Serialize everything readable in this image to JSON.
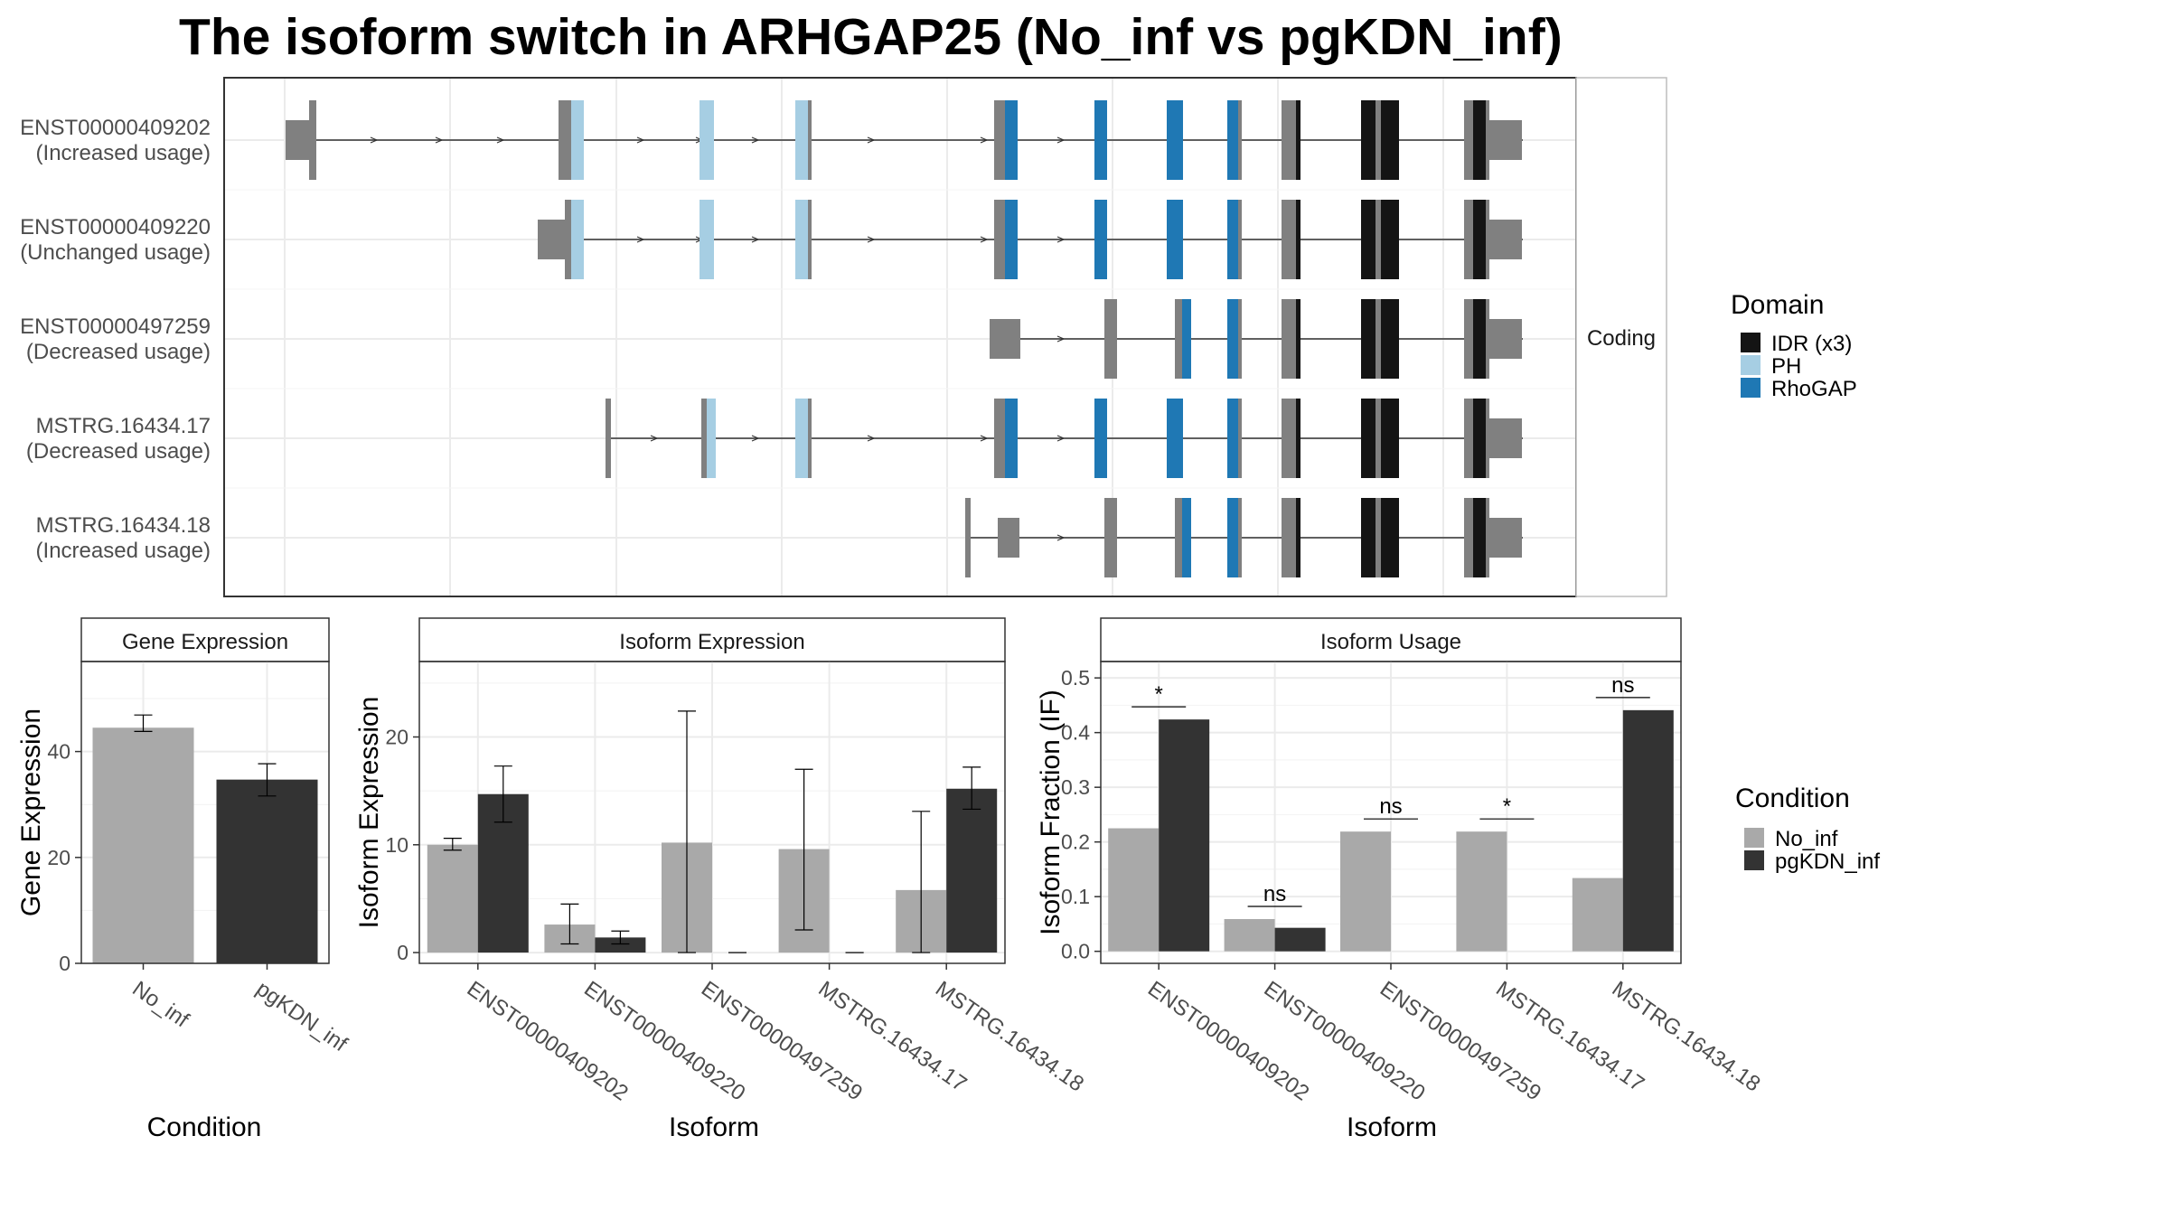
{
  "title": "The isoform switch in ARHGAP25 (No_inf vs pgKDN_inf)",
  "structure_panel": {
    "strip_label": "Coding",
    "isoforms": [
      {
        "id": "ENST00000409202",
        "usage": "(Increased usage)"
      },
      {
        "id": "ENST00000409220",
        "usage": "(Unchanged usage)"
      },
      {
        "id": "ENST00000497259",
        "usage": "(Decreased usage)"
      },
      {
        "id": "MSTRG.16434.17",
        "usage": "(Decreased usage)"
      },
      {
        "id": "MSTRG.16434.18",
        "usage": "(Increased usage)"
      }
    ]
  },
  "domain_legend": {
    "title": "Domain",
    "items": [
      {
        "label": "IDR (x3)",
        "color": "#141414"
      },
      {
        "label": "PH",
        "color": "#a6cee3"
      },
      {
        "label": "RhoGAP",
        "color": "#1f78b4"
      }
    ]
  },
  "condition_legend": {
    "title": "Condition",
    "items": [
      {
        "label": "No_inf",
        "color": "#a9a9a9"
      },
      {
        "label": "pgKDN_inf",
        "color": "#333333"
      }
    ]
  },
  "colors": {
    "utr": "#808080",
    "idr": "#141414",
    "ph": "#a6cee3",
    "rhogap": "#1f78b4",
    "no_inf": "#a9a9a9",
    "pgkdn_inf": "#333333"
  },
  "chart_data": [
    {
      "type": "bar",
      "title": "Gene Expression",
      "xlabel": "Condition",
      "ylabel": "Gene Expression",
      "ylim": [
        0,
        57
      ],
      "yticks": [
        0,
        20,
        40
      ],
      "categories": [
        "No_inf",
        "pgKDN_inf"
      ],
      "values": [
        44.5,
        34.7
      ],
      "errors": [
        [
          43.8,
          46.9
        ],
        [
          31.6,
          37.7
        ]
      ]
    },
    {
      "type": "bar",
      "title": "Isoform Expression",
      "xlabel": "Isoform",
      "ylabel": "Isoform Expression",
      "ylim": [
        -1,
        27
      ],
      "yticks": [
        0,
        10,
        20
      ],
      "categories": [
        "ENST00000409202",
        "ENST00000409220",
        "ENST00000497259",
        "MSTRG.16434.17",
        "MSTRG.16434.18"
      ],
      "series": [
        {
          "name": "No_inf",
          "values": [
            10.0,
            2.6,
            10.2,
            9.6,
            5.8
          ],
          "errors": [
            [
              9.5,
              10.6
            ],
            [
              0.8,
              4.5
            ],
            [
              0.0,
              22.4
            ],
            [
              2.1,
              17.0
            ],
            [
              0.0,
              13.1
            ]
          ]
        },
        {
          "name": "pgKDN_inf",
          "values": [
            14.7,
            1.4,
            0.0,
            0.0,
            15.2
          ],
          "errors": [
            [
              12.1,
              17.3
            ],
            [
              0.8,
              2.0
            ],
            [
              0.0,
              0.0
            ],
            [
              0.0,
              0.0
            ],
            [
              13.3,
              17.2
            ]
          ]
        }
      ]
    },
    {
      "type": "bar",
      "title": "Isoform Usage",
      "xlabel": "Isoform",
      "ylabel": "Isoform Fraction (IF)",
      "ylim": [
        -0.022,
        0.53
      ],
      "yticks": [
        0.0,
        0.1,
        0.2,
        0.3,
        0.4,
        0.5
      ],
      "ytick_labels": [
        "0.0",
        "0.1",
        "0.2",
        "0.3",
        "0.4",
        "0.5"
      ],
      "categories": [
        "ENST00000409202",
        "ENST00000409220",
        "ENST00000497259",
        "MSTRG.16434.17",
        "MSTRG.16434.18"
      ],
      "series": [
        {
          "name": "No_inf",
          "values": [
            0.225,
            0.059,
            0.219,
            0.219,
            0.134
          ]
        },
        {
          "name": "pgKDN_inf",
          "values": [
            0.424,
            0.043,
            0.0,
            0.0,
            0.441
          ]
        }
      ],
      "significance": [
        "*",
        "ns",
        "ns",
        "*",
        "ns"
      ]
    }
  ]
}
